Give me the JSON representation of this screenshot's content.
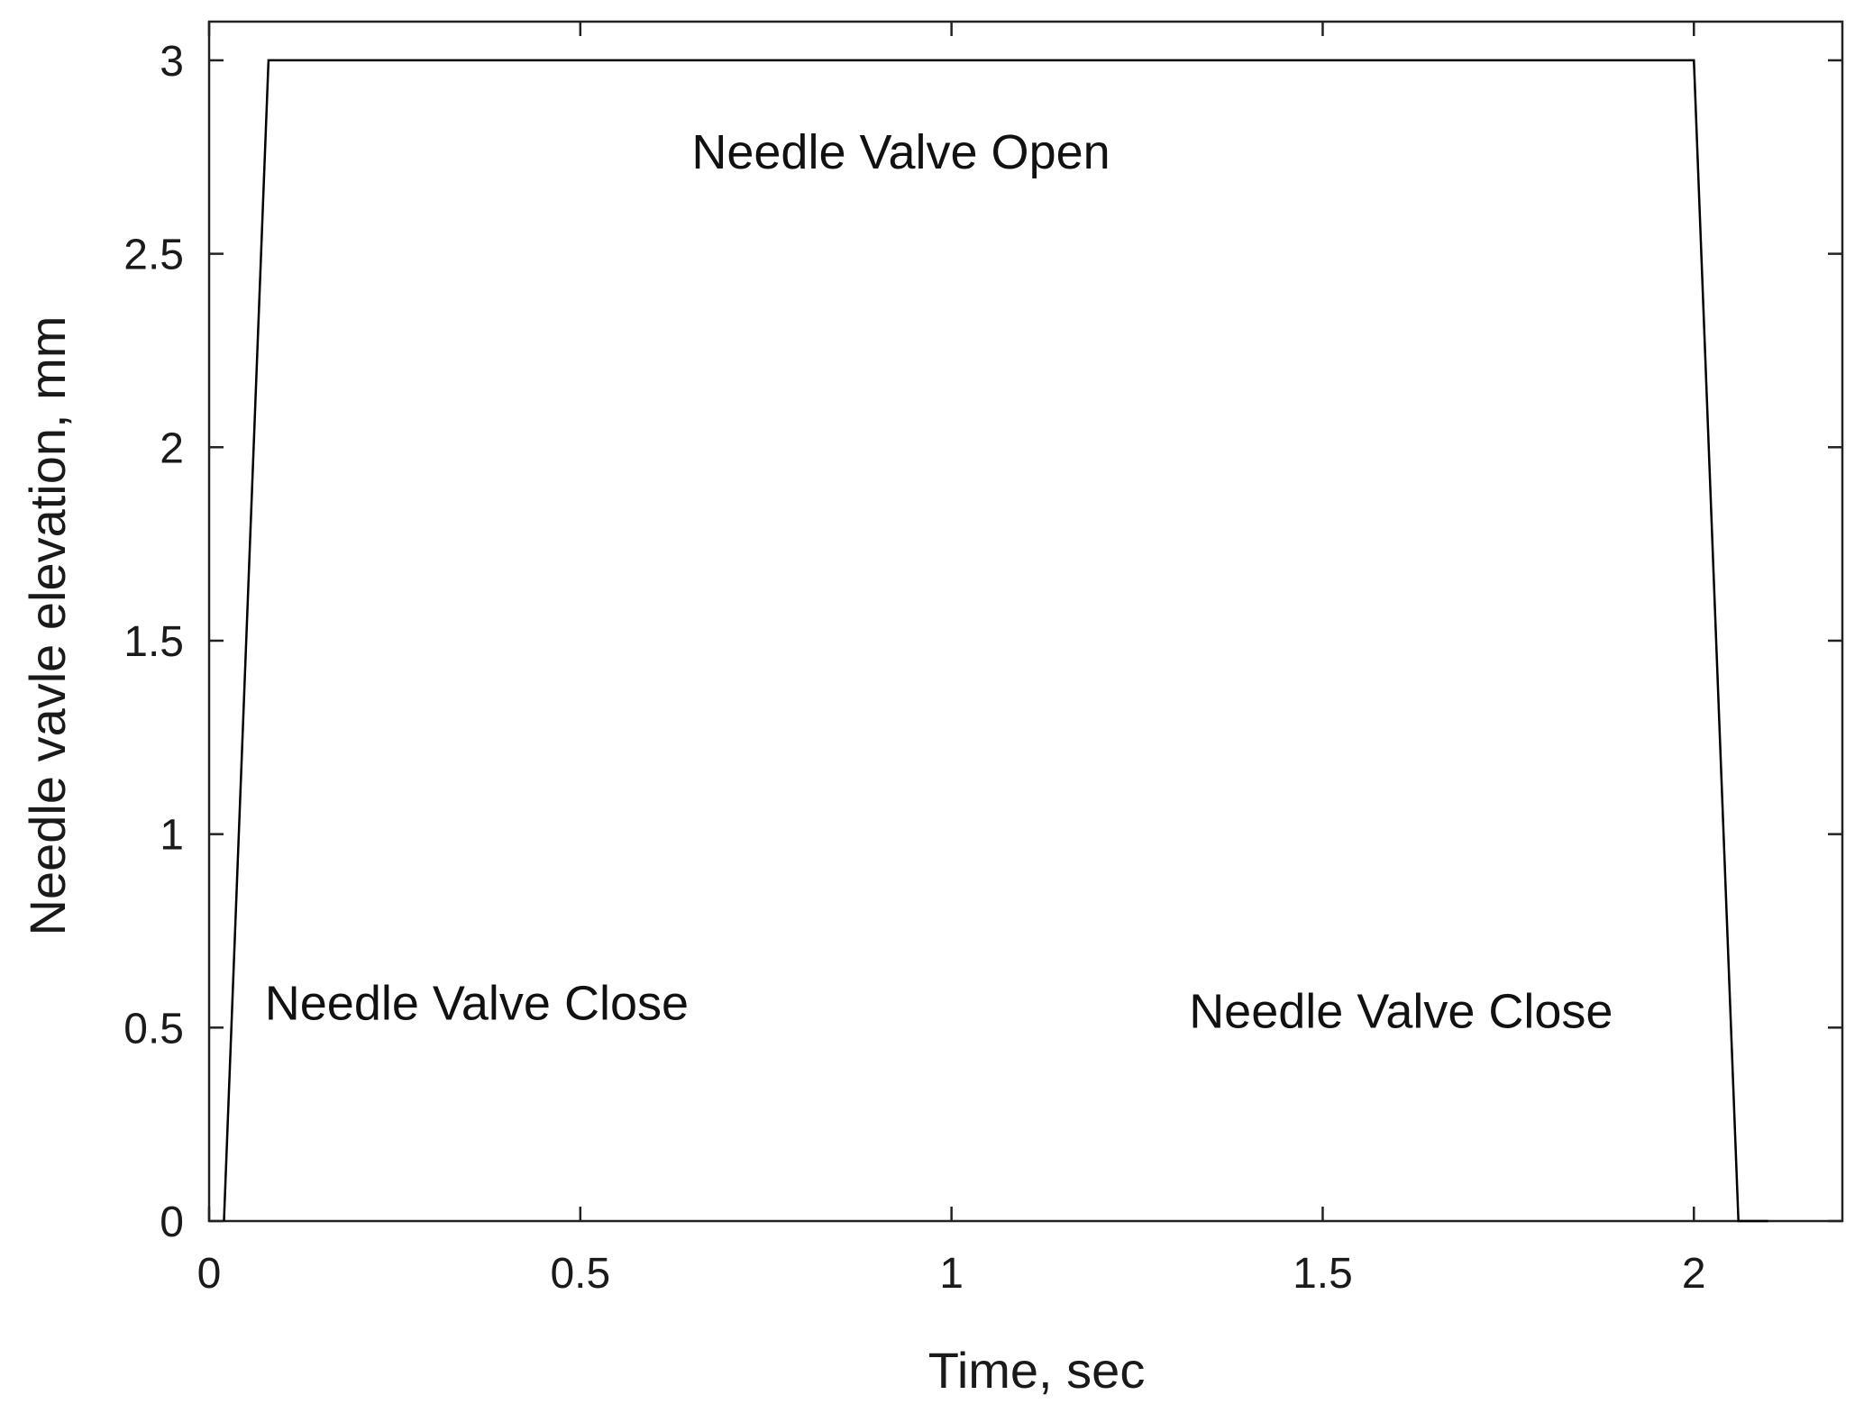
{
  "chart_data": {
    "type": "line",
    "title": "",
    "xlabel": "Time, sec",
    "ylabel": "Needle vavle elevation, mm",
    "xlim": [
      0,
      2.2
    ],
    "ylim": [
      0,
      3.1
    ],
    "xticks": [
      0,
      0.5,
      1,
      1.5,
      2
    ],
    "yticks": [
      0,
      0.5,
      1,
      1.5,
      2,
      2.5,
      3
    ],
    "xtick_labels": [
      "0",
      "0.5",
      "1",
      "1.5",
      "2"
    ],
    "ytick_labels": [
      "0",
      "0.5",
      "1",
      "1.5",
      "2",
      "2.5",
      "3"
    ],
    "grid": false,
    "line_color": "#000000",
    "series": [
      {
        "x": [
          0.02,
          0.08,
          2.0,
          2.06,
          2.1
        ],
        "y": [
          0,
          3,
          3,
          0,
          0
        ]
      }
    ],
    "annotations": [
      {
        "text": "Needle Valve Open",
        "x": 0.65,
        "y": 2.72
      },
      {
        "text": "Needle Valve Close",
        "x": 0.075,
        "y": 0.52
      },
      {
        "text": "Needle Valve Close",
        "x": 1.32,
        "y": 0.5
      }
    ]
  }
}
